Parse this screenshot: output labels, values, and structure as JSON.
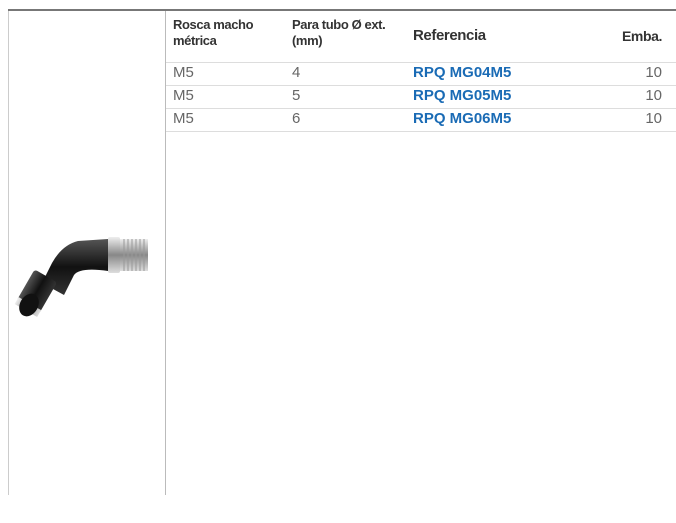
{
  "table": {
    "headers": [
      "Rosca macho métrica",
      "Para tubo Ø ext. (mm)",
      "Referencia",
      "Emba."
    ],
    "rows": [
      [
        "M5",
        "4",
        "RPQ MG04M5",
        "10"
      ],
      [
        "M5",
        "5",
        "RPQ MG05M5",
        "10"
      ],
      [
        "M5",
        "6",
        "RPQ MG06M5",
        "10"
      ]
    ]
  }
}
